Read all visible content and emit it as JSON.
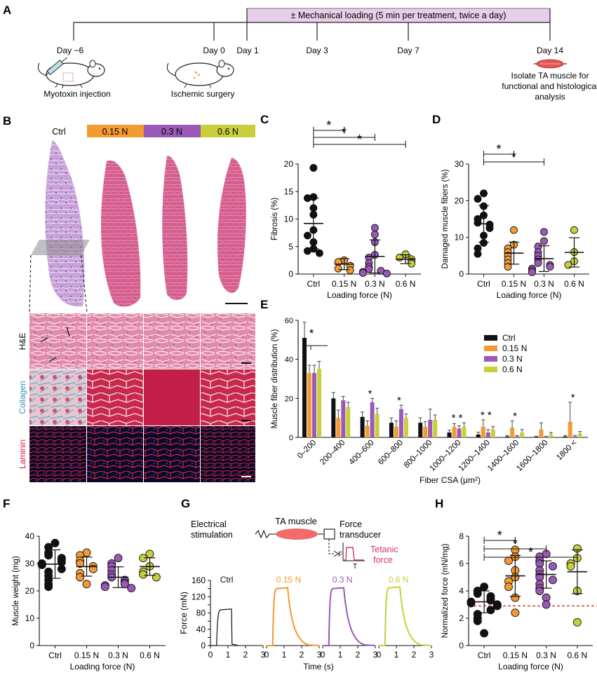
{
  "colors": {
    "ctrl": "#111111",
    "f015": "#f39a32",
    "f03": "#9b59b6",
    "f06": "#c8cf3a",
    "loading_band": "#e8cfe9",
    "tetanic": "#d6336c",
    "muscle": "#f26b6b",
    "threshold": "#c0392b"
  },
  "panel_a": {
    "letter": "A",
    "loading_band": "± Mechanical loading (5 min per treatment, twice a day)",
    "days": [
      "Day −6",
      "Day 0",
      "Day 1",
      "Day 3",
      "Day 7",
      "Day 14"
    ],
    "captions": {
      "myotoxin": "Myotoxin injection",
      "ischemic": "Ischemic surgery",
      "isolate": [
        "Isolate TA muscle for",
        "functional and histological",
        "analysis"
      ]
    }
  },
  "panel_b": {
    "letter": "B",
    "groups": [
      "Ctrl",
      "0.15 N",
      "0.3 N",
      "0.6 N"
    ],
    "rows": [
      "H&E",
      "Collagen",
      "Laminin"
    ]
  },
  "panel_letters": {
    "c": "C",
    "d": "D",
    "e": "E",
    "f": "F",
    "g": "G",
    "h": "H"
  },
  "chart_data": [
    {
      "panel": "C",
      "type": "scatter",
      "ylabel": "Fibrosis (%)",
      "xlabel": "Loading force (N)",
      "categories": [
        "Ctrl",
        "0.15 N",
        "0.3 N",
        "0.6 N"
      ],
      "ylim": [
        0,
        20
      ],
      "yticks": [
        "0",
        "5",
        "10",
        "15",
        "20"
      ],
      "means": [
        9.2,
        1.8,
        3.2,
        2.7
      ],
      "sd": [
        4.6,
        1.0,
        3.0,
        0.8
      ],
      "points": [
        [
          19.3,
          14.0,
          13.8,
          12.0,
          10.8,
          8.0,
          7.0,
          5.8,
          4.6,
          4.2,
          3.8
        ],
        [
          2.5,
          2.2,
          1.5,
          1.0,
          0.7
        ],
        [
          8.4,
          7.2,
          5.8,
          3.5,
          3.0,
          2.0,
          1.3,
          0.9,
          0.6,
          0.4,
          0.2,
          0.1
        ],
        [
          3.6,
          3.0,
          2.7,
          2.3,
          1.9
        ]
      ],
      "significance": [
        {
          "from": 0,
          "to": 1,
          "label": "*"
        },
        {
          "from": 0,
          "to": 2,
          "label": "*"
        },
        {
          "from": 0,
          "to": 3,
          "label": "*"
        }
      ]
    },
    {
      "panel": "D",
      "type": "scatter",
      "ylabel": "Damaged muscle fibers (%)",
      "xlabel": "Loading force (N)",
      "categories": [
        "Ctrl",
        "0.15 N",
        "0.3 N",
        "0.6 N"
      ],
      "ylim": [
        0,
        30
      ],
      "yticks": [
        "0",
        "10",
        "20",
        "30"
      ],
      "means": [
        13.7,
        5.7,
        4.2,
        5.9
      ],
      "sd": [
        5.0,
        3.0,
        3.5,
        4.0
      ],
      "points": [
        [
          22.0,
          20.5,
          18.5,
          16.0,
          15.0,
          14.0,
          13.5,
          12.5,
          10.5,
          8.5,
          7.0,
          5.5
        ],
        [
          12.0,
          8.0,
          7.0,
          6.0,
          5.0,
          4.0,
          3.0,
          2.0
        ],
        [
          11.5,
          9.0,
          7.5,
          6.0,
          5.0,
          4.0,
          3.0,
          2.5,
          2.0,
          1.5,
          1.0,
          0.5
        ],
        [
          12.0,
          6.0,
          3.5,
          2.5
        ]
      ],
      "significance": [
        {
          "from": 0,
          "to": 1,
          "label": "*"
        },
        {
          "from": 0,
          "to": 2,
          "label": "*"
        }
      ]
    },
    {
      "panel": "E",
      "type": "bar",
      "ylabel": "Muscle fiber distribution (%)",
      "xlabel": "Fiber CSA (μm²)",
      "ylim": [
        0,
        60
      ],
      "yticks": [
        "0",
        "20",
        "40",
        "60"
      ],
      "categories": [
        "0–200",
        "200–400",
        "400–600",
        "600–800",
        "800–1000",
        "1000–1200",
        "1200–1400",
        "1400–1600",
        "1600–1800",
        "1800 <"
      ],
      "series": [
        {
          "name": "Ctrl",
          "values": [
            51,
            20,
            10.5,
            7.5,
            7.5,
            2.5,
            1.5,
            0.5,
            0.3,
            0.5
          ],
          "err": [
            8,
            3,
            2.5,
            2.5,
            2.5,
            1.2,
            1.2,
            0.5,
            0.3,
            0.5
          ]
        },
        {
          "name": "0.15 N",
          "values": [
            33,
            10,
            6,
            5.5,
            5.5,
            5.5,
            5.5,
            5,
            4,
            8
          ],
          "err": [
            4,
            4,
            2.5,
            3,
            2.5,
            1.5,
            3.5,
            3.5,
            3.5,
            10
          ]
        },
        {
          "name": "0.3 N",
          "values": [
            33,
            19,
            18,
            14.5,
            9,
            4.5,
            2.5,
            0.5,
            0.3,
            0.5
          ],
          "err": [
            4,
            2,
            2,
            2,
            5.5,
            1.5,
            1.5,
            0.5,
            0.3,
            0.5
          ]
        },
        {
          "name": "0.6 N",
          "values": [
            35,
            15.5,
            12,
            10,
            9,
            5.5,
            4,
            2.5,
            1.5,
            2
          ],
          "err": [
            4,
            2.5,
            3,
            2,
            2.5,
            2,
            1.5,
            1.5,
            1,
            1
          ]
        }
      ],
      "legend": [
        "Ctrl",
        "0.15 N",
        "0.3 N",
        "0.6 N"
      ],
      "stars": [
        {
          "cat": 0,
          "label": "*"
        },
        {
          "cat": 2,
          "label": "*"
        },
        {
          "cat": 3,
          "label": "*"
        },
        {
          "cat": 5,
          "label": "* *"
        },
        {
          "cat": 6,
          "label": "* *"
        },
        {
          "cat": 7,
          "label": "*"
        },
        {
          "cat": 9,
          "label": "*"
        }
      ]
    },
    {
      "panel": "F",
      "type": "scatter",
      "ylabel": "Muscle weight (mg)",
      "xlabel": "Loading force (N)",
      "categories": [
        "Ctrl",
        "0.15 N",
        "0.3 N",
        "0.6 N"
      ],
      "ylim": [
        0,
        40
      ],
      "yticks": [
        "0",
        "10",
        "20",
        "30",
        "40"
      ],
      "means": [
        29.8,
        28.9,
        25.0,
        28.9
      ],
      "sd": [
        5.2,
        3.5,
        3.8,
        3.2
      ],
      "points": [
        [
          37.5,
          36.0,
          34.0,
          33.0,
          32.0,
          31.5,
          30.5,
          30.0,
          29.5,
          28.0,
          27.0,
          25.5,
          24.0,
          22.5,
          21.5
        ],
        [
          34.0,
          33.0,
          31.0,
          30.0,
          29.0,
          28.0,
          26.5,
          25.0,
          22.5
        ],
        [
          32.0,
          30.0,
          29.0,
          27.5,
          26.0,
          25.0,
          24.0,
          23.0,
          22.5,
          22.0,
          21.5,
          21.0
        ],
        [
          33.5,
          32.0,
          29.0,
          27.0,
          26.0,
          25.0
        ]
      ]
    },
    {
      "panel": "G",
      "type": "line",
      "ylabel": "Force (mN)",
      "xlabel": "Time (s)",
      "ylim": [
        0,
        160
      ],
      "yticks": [
        "0",
        "20",
        "40",
        "60",
        "80",
        "100",
        "120",
        "140",
        "160"
      ],
      "xticks": [
        "0",
        "1",
        "2",
        "3"
      ],
      "traces": [
        {
          "name": "Ctrl",
          "plateau": 88
        },
        {
          "name": "0.15 N",
          "plateau": 140
        },
        {
          "name": "0.3 N",
          "plateau": 140
        },
        {
          "name": "0.6 N",
          "plateau": 142
        }
      ],
      "schematic": {
        "stimulation": [
          "Electrical",
          "stimulation"
        ],
        "muscle": "TA muscle",
        "transducer": [
          "Force",
          "transducer"
        ],
        "tetanic": [
          "Tetanic",
          "force"
        ],
        "f": "F",
        "t": "T"
      }
    },
    {
      "panel": "H",
      "type": "scatter",
      "ylabel": "Normalized force (mN/mg)",
      "xlabel": "Loading force (N)",
      "categories": [
        "Ctrl",
        "0.15 N",
        "0.3 N",
        "0.6 N"
      ],
      "ylim": [
        0,
        8
      ],
      "yticks": [
        "0",
        "2",
        "4",
        "6",
        "8"
      ],
      "means": [
        3.2,
        5.1,
        5.2,
        5.4
      ],
      "sd": [
        0.8,
        1.5,
        1.0,
        1.6
      ],
      "threshold": 2.9,
      "points": [
        [
          4.3,
          4.0,
          3.8,
          3.6,
          3.4,
          3.3,
          3.2,
          3.1,
          3.0,
          2.9,
          2.6,
          2.3,
          2.0,
          1.8,
          0.9
        ],
        [
          7.0,
          6.5,
          6.2,
          5.5,
          5.0,
          4.7,
          4.3,
          3.5,
          2.4
        ],
        [
          6.7,
          6.5,
          6.2,
          6.0,
          5.8,
          5.5,
          5.2,
          5.0,
          4.8,
          4.5,
          4.2,
          4.0,
          3.5,
          3.0
        ],
        [
          7.1,
          6.4,
          6.0,
          5.8,
          4.0,
          1.7
        ]
      ],
      "significance": [
        {
          "from": 0,
          "to": 1,
          "label": "*"
        },
        {
          "from": 0,
          "to": 2,
          "label": "*"
        },
        {
          "from": 0,
          "to": 3,
          "label": "*"
        }
      ]
    }
  ]
}
